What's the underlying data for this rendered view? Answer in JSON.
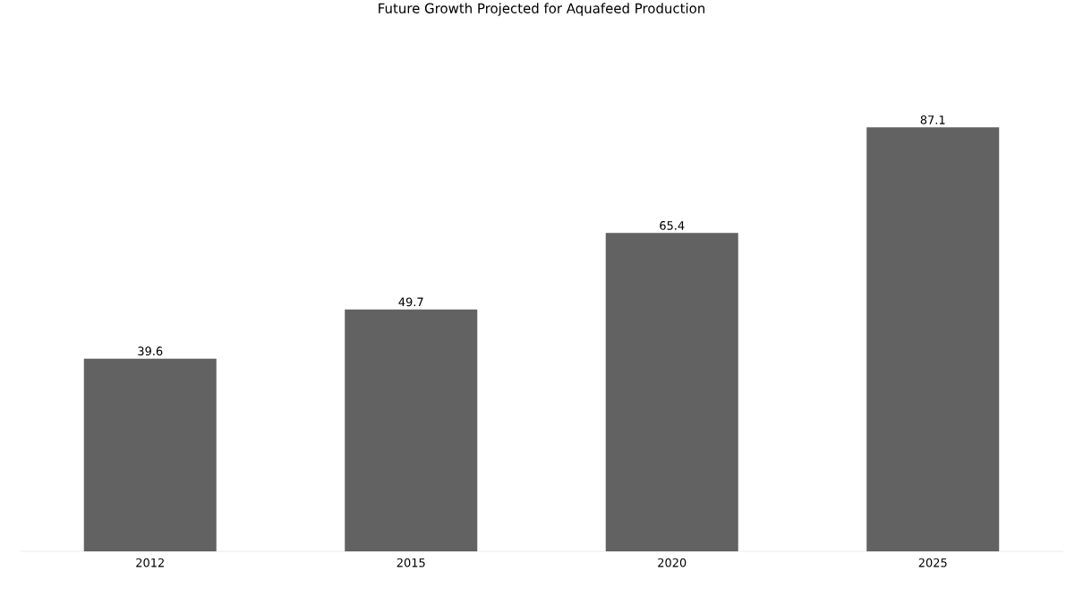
{
  "chart_data": {
    "type": "bar",
    "title": "Future Growth Projected for Aquafeed Production",
    "categories": [
      "2012",
      "2015",
      "2020",
      "2025"
    ],
    "values": [
      39.6,
      49.7,
      65.4,
      87.1
    ],
    "color": "#626262",
    "data_labels": true
  }
}
